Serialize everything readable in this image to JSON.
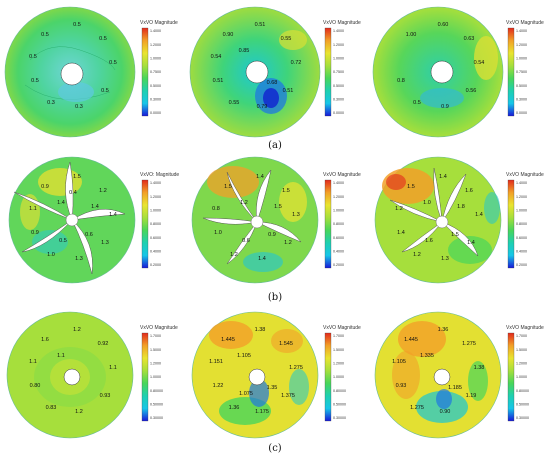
{
  "figure": {
    "panel_labels": [
      "(a)",
      "(b)",
      "(c)"
    ],
    "colorbar_title": "VxVO Magnitude",
    "colorbar_title_alt": "VxVO: Magnitude",
    "colors": {
      "blue": "#1818d8",
      "cyan": "#17c6e8",
      "teal": "#1fd0b0",
      "green": "#48d65a",
      "lime": "#a6df3c",
      "yellow": "#e9e430",
      "orange": "#f2a028",
      "red": "#e22a1c"
    },
    "rows": [
      {
        "label": "(a)",
        "colorbar_ticks": [
          "1.4000",
          "1.2000",
          "1.0000",
          "0.7500",
          "0.5000",
          "0.3000",
          "0.0000"
        ],
        "panels": [
          {
            "contour_labels": [
              "0.5",
              "0.5",
              "0.5",
              "0.5",
              "0.5",
              "0.3",
              "0.3",
              "0.5",
              "0.5"
            ]
          },
          {
            "contour_labels": [
              "0.90",
              "0.51",
              "0.55",
              "0.72",
              "0.51",
              "0.79",
              "0.55",
              "0.51",
              "0.54",
              "0.85",
              "0.68"
            ]
          },
          {
            "contour_labels": [
              "1.00",
              "0.60",
              "0.63",
              "0.54",
              "0.56",
              "0.9",
              "0.5",
              "0.8"
            ]
          }
        ]
      },
      {
        "label": "(b)",
        "colorbar_ticks": [
          "1.4000",
          "1.2000",
          "1.0000",
          "0.8000",
          "0.6000",
          "0.4000",
          "0.2000"
        ],
        "panels": [
          {
            "contour_labels": [
              "0.9",
              "1.5",
              "1.2",
              "1.4",
              "1.3",
              "1.3",
              "1.0",
              "0.9",
              "1.1",
              "1.4",
              "0.6",
              "0.5",
              "1.4",
              "0.4"
            ]
          },
          {
            "contour_labels": [
              "1.5",
              "1.4",
              "1.5",
              "1.3",
              "1.2",
              "1.4",
              "1.2",
              "1.0",
              "0.8",
              "1.2",
              "0.9",
              "0.6",
              "1.5"
            ]
          },
          {
            "contour_labels": [
              "1.5",
              "1.4",
              "1.6",
              "1.4",
              "1.4",
              "1.3",
              "1.2",
              "1.4",
              "1.2",
              "1.0",
              "1.5",
              "1.6",
              "1.8"
            ]
          }
        ]
      },
      {
        "label": "(c)",
        "colorbar_ticks": [
          "1.7000",
          "1.5000",
          "1.2000",
          "1.0000",
          "0.80000",
          "0.50000",
          "0.30000"
        ],
        "panels": [
          {
            "contour_labels": [
              "1.6",
              "1.2",
              "0.92",
              "1.1",
              "0.93",
              "1.2",
              "0.83",
              "0.80",
              "1.1",
              "1.1"
            ]
          },
          {
            "contour_labels": [
              "1.445",
              "1.38",
              "1.545",
              "1.275",
              "1.375",
              "1.175",
              "1.36",
              "1.22",
              "1.151",
              "1.105",
              "1.35",
              "1.075"
            ]
          },
          {
            "contour_labels": [
              "1.445",
              "1.36",
              "1.275",
              "1.38",
              "1.19",
              "0.90",
              "1.275",
              "0.93",
              "1.105",
              "1.335",
              "1.185"
            ]
          }
        ]
      }
    ]
  }
}
